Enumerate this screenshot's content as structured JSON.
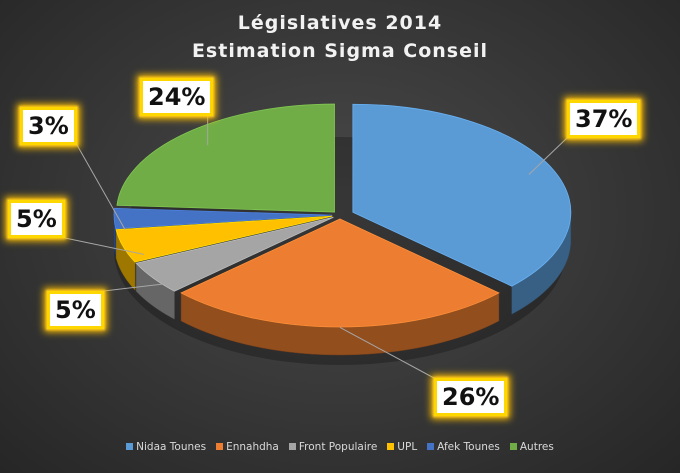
{
  "chart_data": {
    "type": "pie",
    "title": "Législatives 2014",
    "subtitle": "Estimation Sigma Conseil",
    "categories": [
      "Nidaa Tounes",
      "Ennahdha",
      "Front Populaire",
      "UPL",
      "Afek Tounes",
      "Autres"
    ],
    "values": [
      37,
      26,
      5,
      5,
      3,
      24
    ],
    "data_labels": [
      "37%",
      "26%",
      "5%",
      "5%",
      "3%",
      "24%"
    ],
    "colors": [
      "#5b9bd5",
      "#ed7d31",
      "#a5a5a5",
      "#ffc000",
      "#4472c4",
      "#70ad47"
    ],
    "style": "3d-exploded",
    "legend_position": "bottom"
  }
}
